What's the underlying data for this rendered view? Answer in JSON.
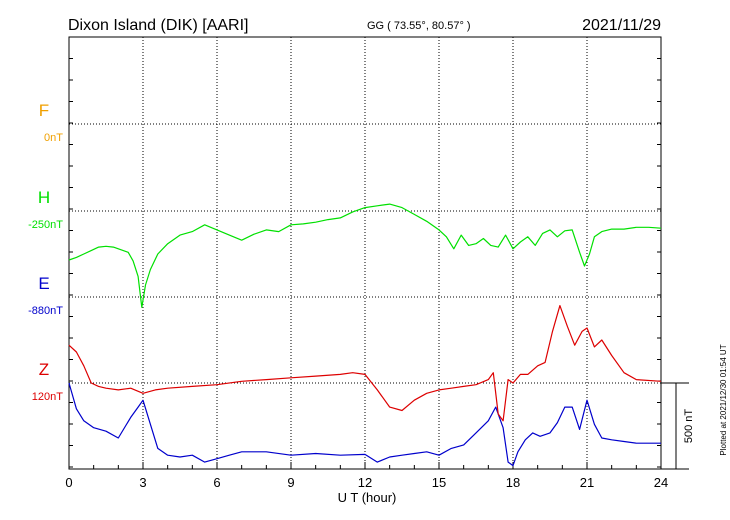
{
  "chart_data": {
    "type": "line",
    "title": "Dixon Island (DIK)  [AARI]",
    "coords": "GG ( 73.55°,  80.57° )",
    "date": "2021/11/29",
    "xlabel": "U T (hour)",
    "xlim": [
      0,
      24
    ],
    "xticks": [
      "0",
      "3",
      "6",
      "9",
      "12",
      "15",
      "18",
      "21",
      "24"
    ],
    "plotted_note": "Plotted at 2021/12/30 01:54 UT",
    "scale_label": "500 nT",
    "grid": true,
    "colors": {
      "F": "#f0a000",
      "H": "#00e000",
      "E": "#0000cc",
      "Z": "#dd0000"
    },
    "series": [
      {
        "name": "F",
        "baseline": "0nT",
        "x": [],
        "y": []
      },
      {
        "name": "H",
        "baseline": "-250nT",
        "x": [
          0,
          0.3,
          0.6,
          0.9,
          1.2,
          1.5,
          1.8,
          2.1,
          2.4,
          2.6,
          2.8,
          2.95,
          3.1,
          3.3,
          3.6,
          4.0,
          4.5,
          5.0,
          5.5,
          6.0,
          6.5,
          7.0,
          7.5,
          8.0,
          8.5,
          9.0,
          9.5,
          10.0,
          10.5,
          11.0,
          11.5,
          12.0,
          12.5,
          13.0,
          13.5,
          14.0,
          14.5,
          15.0,
          15.3,
          15.6,
          15.9,
          16.2,
          16.5,
          16.8,
          17.1,
          17.4,
          17.7,
          18.0,
          18.3,
          18.6,
          18.9,
          19.2,
          19.5,
          19.8,
          20.1,
          20.4,
          20.7,
          20.9,
          21.1,
          21.3,
          21.6,
          22.0,
          22.5,
          23.0,
          23.5,
          24.0
        ],
        "y": [
          -285,
          -270,
          -250,
          -230,
          -210,
          -205,
          -210,
          -225,
          -240,
          -290,
          -380,
          -560,
          -430,
          -340,
          -250,
          -190,
          -140,
          -120,
          -80,
          -110,
          -140,
          -170,
          -135,
          -110,
          -120,
          -80,
          -75,
          -65,
          -50,
          -40,
          -5,
          20,
          30,
          40,
          20,
          -20,
          -60,
          -110,
          -150,
          -220,
          -140,
          -200,
          -190,
          -160,
          -200,
          -210,
          -140,
          -220,
          -180,
          -150,
          -200,
          -130,
          -110,
          -150,
          -115,
          -110,
          -240,
          -320,
          -250,
          -150,
          -120,
          -105,
          -105,
          -95,
          -95,
          -100
        ]
      },
      {
        "name": "E",
        "baseline": "-880nT",
        "x": [
          0,
          0.3,
          0.6,
          1.0,
          1.5,
          2.0,
          2.5,
          2.8,
          3.0,
          3.3,
          3.6,
          4.0,
          4.5,
          5.0,
          5.5,
          6.0,
          6.5,
          7.0,
          8.0,
          9.0,
          10.0,
          11.0,
          12.0,
          12.5,
          13.0,
          13.5,
          14.0,
          14.5,
          15.0,
          15.5,
          16.0,
          16.5,
          17.0,
          17.3,
          17.6,
          17.8,
          18.0,
          18.2,
          18.5,
          18.8,
          19.1,
          19.5,
          19.8,
          20.1,
          20.4,
          20.7,
          21.0,
          21.3,
          21.6,
          22.0,
          22.5,
          23.0,
          24.0
        ],
        "y": [
          -500,
          -650,
          -720,
          -760,
          -780,
          -820,
          -700,
          -640,
          -600,
          -740,
          -880,
          -920,
          -930,
          -920,
          -960,
          -940,
          -920,
          -900,
          -900,
          -920,
          -910,
          -920,
          -915,
          -960,
          -930,
          -920,
          -910,
          -900,
          -920,
          -880,
          -860,
          -790,
          -720,
          -640,
          -760,
          -960,
          -980,
          -900,
          -830,
          -790,
          -810,
          -790,
          -730,
          -640,
          -640,
          -770,
          -600,
          -740,
          -820,
          -830,
          -840,
          -850,
          -850
        ]
      },
      {
        "name": "Z",
        "baseline": "120nT",
        "x": [
          0,
          0.3,
          0.6,
          0.9,
          1.2,
          1.5,
          2.0,
          2.5,
          3.0,
          3.5,
          4.0,
          5.0,
          6.0,
          7.0,
          8.0,
          9.0,
          10.0,
          11.0,
          11.5,
          12.0,
          12.5,
          13.0,
          13.5,
          14.0,
          14.5,
          15.0,
          15.5,
          16.0,
          16.5,
          17.0,
          17.2,
          17.4,
          17.6,
          17.8,
          18.0,
          18.3,
          18.6,
          19.0,
          19.3,
          19.6,
          19.9,
          20.2,
          20.5,
          20.8,
          21.0,
          21.3,
          21.6,
          22.0,
          22.5,
          23.0,
          24.0
        ],
        "y": [
          220,
          180,
          100,
          0,
          -20,
          -30,
          -40,
          -30,
          -60,
          -40,
          -30,
          -20,
          -10,
          10,
          20,
          30,
          40,
          50,
          60,
          50,
          -40,
          -140,
          -160,
          -100,
          -60,
          -40,
          -30,
          -20,
          -10,
          20,
          60,
          -180,
          -220,
          20,
          0,
          50,
          50,
          100,
          120,
          300,
          450,
          330,
          220,
          300,
          320,
          210,
          250,
          160,
          60,
          20,
          10
        ]
      }
    ]
  }
}
